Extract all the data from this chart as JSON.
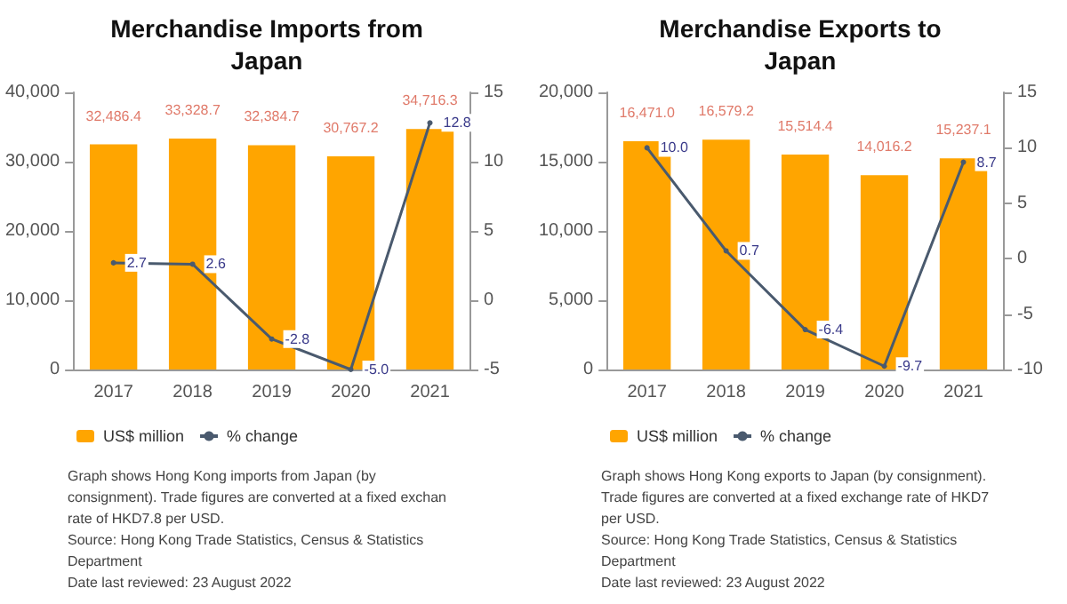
{
  "chart_data": [
    {
      "type": "bar",
      "title": "Merchandise Imports from\nJapan",
      "categories": [
        "2017",
        "2018",
        "2019",
        "2020",
        "2021"
      ],
      "series": [
        {
          "name": "US$ million",
          "color": "#ffa500",
          "values": [
            32486.4,
            33328.7,
            32384.7,
            30767.2,
            34716.3
          ],
          "value_labels": [
            "32,486.4",
            "33,328.7",
            "32,384.7",
            "30,767.2",
            "34,716.3"
          ]
        },
        {
          "name": "% change",
          "type": "line",
          "axis": "y2",
          "color": "#4a5a6e",
          "values": [
            2.7,
            2.6,
            -2.8,
            -5.0,
            12.8
          ],
          "value_labels": [
            "2.7",
            "2.6",
            "-2.8",
            "-5.0",
            "12.8"
          ]
        }
      ],
      "ylim": [
        0,
        40000
      ],
      "yticks": [
        {
          "value": 0,
          "label": "0"
        },
        {
          "value": 10000,
          "label": "10,000"
        },
        {
          "value": 20000,
          "label": "20,000"
        },
        {
          "value": 30000,
          "label": "30,000"
        },
        {
          "value": 40000,
          "label": "40,000"
        }
      ],
      "y2lim": [
        -5,
        15
      ],
      "y2ticks": [
        -5,
        0,
        5,
        10,
        15
      ],
      "legend": "bottom",
      "marker": "circle",
      "annotations": [
        "Graph shows Hong Kong imports from Japan (by consignment). Trade figures are converted at a fixed exchan rate of HKD7.8 per USD.",
        "Source: Hong Kong Trade Statistics, Census & Statistics Department",
        "Date last reviewed: 23 August 2022"
      ]
    },
    {
      "type": "bar",
      "title": "Merchandise Exports to\nJapan",
      "categories": [
        "2017",
        "2018",
        "2019",
        "2020",
        "2021"
      ],
      "series": [
        {
          "name": "US$ million",
          "color": "#ffa500",
          "values": [
            16471.0,
            16579.2,
            15514.4,
            14016.2,
            15237.1
          ],
          "value_labels": [
            "16,471.0",
            "16,579.2",
            "15,514.4",
            "14,016.2",
            "15,237.1"
          ]
        },
        {
          "name": "% change",
          "type": "line",
          "axis": "y2",
          "color": "#4a5a6e",
          "values": [
            10.0,
            0.7,
            -6.4,
            -9.7,
            8.7
          ],
          "value_labels": [
            "10.0",
            "0.7",
            "-6.4",
            "-9.7",
            "8.7"
          ]
        }
      ],
      "ylim": [
        0,
        20000
      ],
      "yticks": [
        {
          "value": 0,
          "label": "0"
        },
        {
          "value": 5000,
          "label": "5,000"
        },
        {
          "value": 10000,
          "label": "10,000"
        },
        {
          "value": 15000,
          "label": "15,000"
        },
        {
          "value": 20000,
          "label": "20,000"
        }
      ],
      "y2lim": [
        -10,
        15
      ],
      "y2ticks": [
        -10,
        -5,
        0,
        5,
        10,
        15
      ],
      "legend": "bottom",
      "marker": "circle",
      "annotations": [
        "Graph shows Hong Kong exports to Japan (by consignment). Trade figures are converted at a fixed exchange rate of HKD7 per USD.",
        "Source: Hong Kong Trade Statistics, Census & Statistics Department",
        "Date last reviewed: 23 August 2022"
      ]
    }
  ]
}
